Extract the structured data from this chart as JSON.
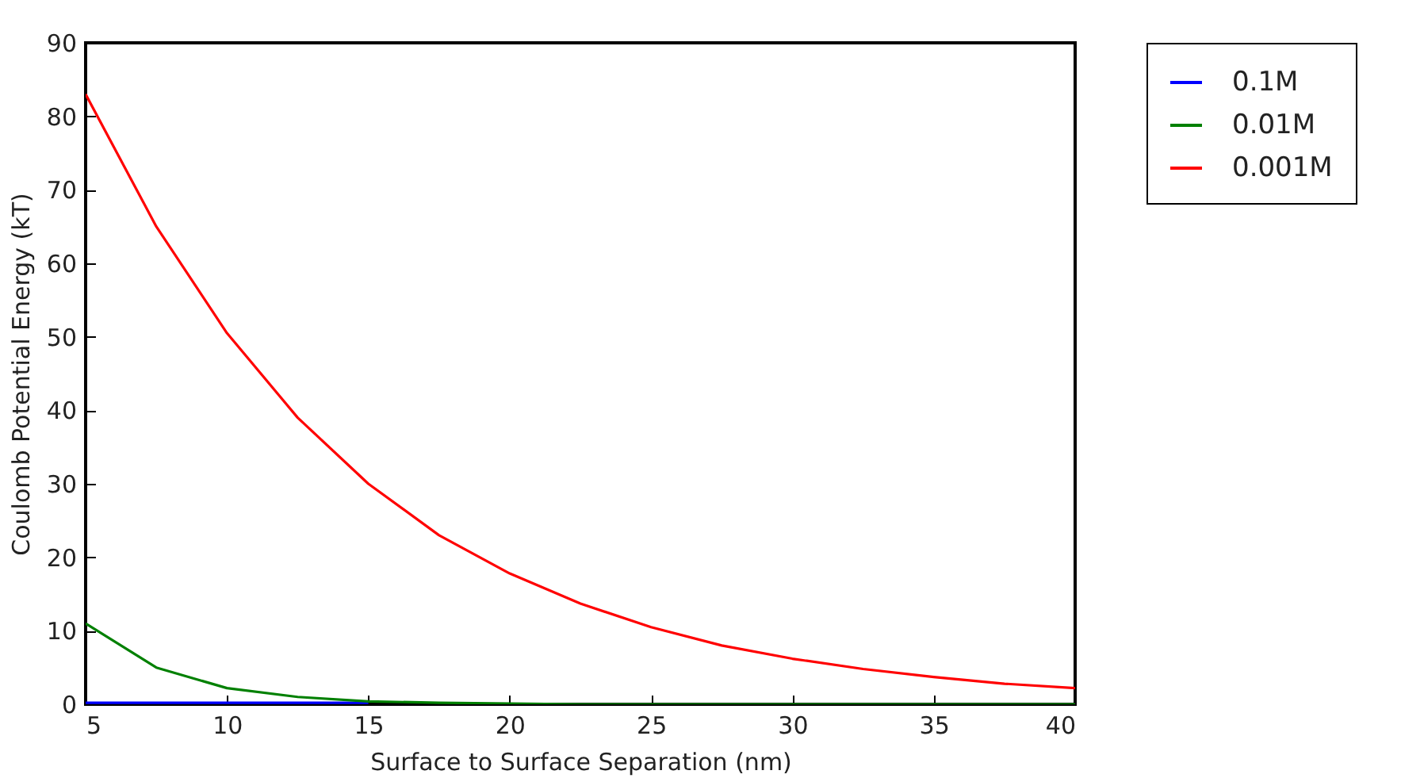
{
  "chart_data": {
    "type": "line",
    "xlabel": "Surface to Surface Separation (nm)",
    "ylabel": "Coulomb Potential Energy (kT)",
    "x": [
      5,
      7.5,
      10,
      12.5,
      15,
      17.5,
      20,
      22.5,
      25,
      27.5,
      30,
      32.5,
      35,
      37.5,
      40
    ],
    "series": [
      {
        "name": "0.1M",
        "color": "#0000ff",
        "values": [
          0.2,
          0.2,
          0.2,
          0.2,
          0.2,
          null,
          null,
          null,
          null,
          null,
          null,
          null,
          null,
          null,
          null
        ]
      },
      {
        "name": "0.01M",
        "color": "#008000",
        "values": [
          11,
          5,
          2.2,
          1,
          0.4,
          0.2,
          0.1,
          0,
          0,
          0,
          0,
          0,
          0,
          0,
          0
        ]
      },
      {
        "name": "0.001M",
        "color": "#ff0000",
        "values": [
          83,
          65,
          50.5,
          39,
          30,
          23,
          17.8,
          13.7,
          10.5,
          8,
          6.2,
          4.8,
          3.7,
          2.8,
          2.2
        ]
      }
    ],
    "xlim": [
      5,
      40
    ],
    "xticks": [
      5,
      10,
      15,
      20,
      25,
      30,
      35,
      40
    ],
    "ylim": [
      0,
      90
    ],
    "yticks": [
      0,
      10,
      20,
      30,
      40,
      50,
      60,
      70,
      80,
      90
    ],
    "legend": "right",
    "grid": false,
    "marker": "none",
    "line_style": "solid"
  }
}
